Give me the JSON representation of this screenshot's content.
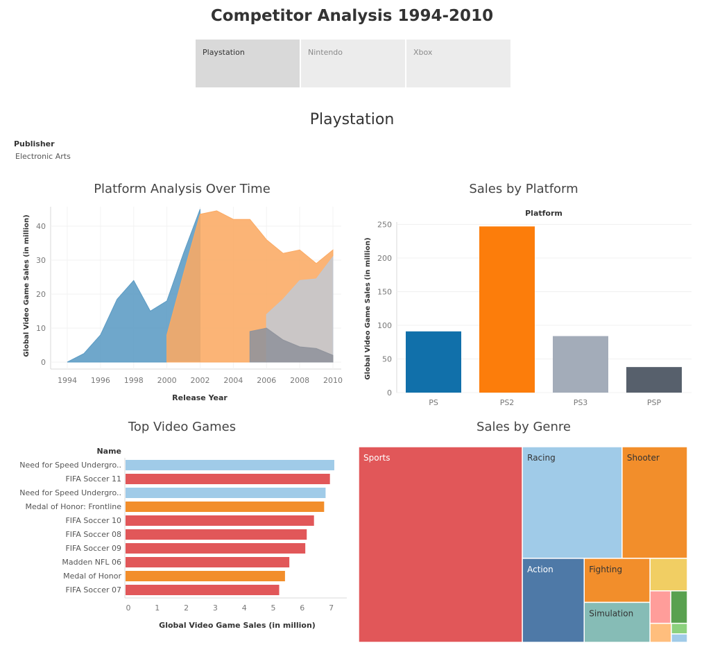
{
  "dashboard": {
    "title": "Competitor Analysis 1994-2010",
    "tabs": [
      {
        "label": "Playstation",
        "active": true
      },
      {
        "label": "Nintendo",
        "active": false
      },
      {
        "label": "Xbox",
        "active": false
      }
    ],
    "section_title": "Playstation",
    "filter": {
      "label": "Publisher",
      "value": "Electronic Arts"
    }
  },
  "chart_data": [
    {
      "type": "area",
      "title": "Platform Analysis Over Time",
      "xlabel": "Release Year",
      "ylabel": "Global Video Game Sales (in million)",
      "xlim": [
        1994,
        2010
      ],
      "ylim": [
        0,
        45
      ],
      "xticks": [
        "1994",
        "1996",
        "1998",
        "2000",
        "2002",
        "2004",
        "2006",
        "2008",
        "2010"
      ],
      "yticks": [
        "0",
        "10",
        "20",
        "30",
        "40"
      ],
      "grid": true,
      "series": [
        {
          "platform": "PS",
          "color": "#5b9bc4",
          "x": [
            1994,
            1995,
            1996,
            1997,
            1998,
            1999,
            2000,
            2001,
            2002
          ],
          "y": [
            0,
            2.5,
            8,
            18.5,
            24,
            15,
            18,
            32,
            45
          ]
        },
        {
          "platform": "PS2",
          "color": "#fbaa63",
          "x": [
            2000,
            2001,
            2002,
            2003,
            2004,
            2005,
            2006,
            2007,
            2008,
            2009,
            2010
          ],
          "y": [
            8,
            26,
            43.5,
            44.5,
            42,
            42,
            36,
            32,
            33,
            29,
            33
          ]
        },
        {
          "platform": "PS3",
          "color": "#c3c8d1",
          "x": [
            2006,
            2007,
            2008,
            2009,
            2010
          ],
          "y": [
            14,
            18.5,
            24,
            24.5,
            31
          ]
        },
        {
          "platform": "PSP",
          "color": "#8f939c",
          "x": [
            2005,
            2006,
            2007,
            2008,
            2009,
            2010
          ],
          "y": [
            9,
            10,
            6.5,
            4.5,
            4,
            2
          ]
        }
      ]
    },
    {
      "type": "bar",
      "title": "Sales by Platform",
      "header": "Platform",
      "ylabel": "Global Video Game Sales (in million)",
      "ylim": [
        0,
        260
      ],
      "yticks": [
        "0",
        "50",
        "100",
        "150",
        "200",
        "250"
      ],
      "categories": [
        "PS",
        "PS2",
        "PS3",
        "PSP"
      ],
      "values": [
        91,
        247,
        84,
        38
      ],
      "colors": [
        "#1170aa",
        "#fc7d0b",
        "#a3acb9",
        "#57606c"
      ]
    },
    {
      "type": "bar",
      "orientation": "horizontal",
      "title": "Top Video Games",
      "header": "Name",
      "xlabel": "Global Video Game Sales (in million)",
      "xlim": [
        0,
        7.5
      ],
      "xticks": [
        "0",
        "1",
        "2",
        "3",
        "4",
        "5",
        "6",
        "7"
      ],
      "categories": [
        "Need for Speed Undergro..",
        "FIFA Soccer 11",
        "Need for Speed Undergro..",
        "Medal of Honor: Frontline",
        "FIFA Soccer 10",
        "FIFA Soccer 08",
        "FIFA Soccer 09",
        "Madden NFL 06",
        "Medal of Honor",
        "FIFA Soccer 07"
      ],
      "values": [
        7.2,
        7.05,
        6.9,
        6.85,
        6.5,
        6.25,
        6.2,
        5.65,
        5.5,
        5.3
      ],
      "colors": [
        "#a0cbe8",
        "#e15759",
        "#a0cbe8",
        "#f28e2b",
        "#e15759",
        "#e15759",
        "#e15759",
        "#e15759",
        "#f28e2b",
        "#e15759"
      ]
    },
    {
      "type": "treemap",
      "title": "Sales by Genre",
      "items": [
        {
          "label": "Sports",
          "value": 47.5,
          "color": "#e15759",
          "text_color": "#ffffff"
        },
        {
          "label": "Racing",
          "value": 16.5,
          "color": "#a0cbe8",
          "text_color": "#333333"
        },
        {
          "label": "Shooter",
          "value": 10.8,
          "color": "#f28e2b",
          "text_color": "#333333"
        },
        {
          "label": "Action",
          "value": 7.7,
          "color": "#4e79a7",
          "text_color": "#ffffff"
        },
        {
          "label": "Fighting",
          "value": 4.3,
          "color": "#f28e2b",
          "text_color": "#333333"
        },
        {
          "label": "Simulation",
          "value": 3.9,
          "color": "#86bcb6",
          "text_color": "#333333"
        },
        {
          "label": "",
          "value": 1.8,
          "color": "#f1ce63",
          "text_color": "#333333"
        },
        {
          "label": "",
          "value": 1.0,
          "color": "#ff9d9a",
          "text_color": "#333333"
        },
        {
          "label": "",
          "value": 0.8,
          "color": "#59a14f",
          "text_color": "#333333"
        },
        {
          "label": "",
          "value": 0.6,
          "color": "#ffbe7d",
          "text_color": "#333333"
        },
        {
          "label": "",
          "value": 0.25,
          "color": "#8cd17d",
          "text_color": "#333333"
        },
        {
          "label": "",
          "value": 0.2,
          "color": "#a0cbe8",
          "text_color": "#333333"
        }
      ]
    }
  ]
}
